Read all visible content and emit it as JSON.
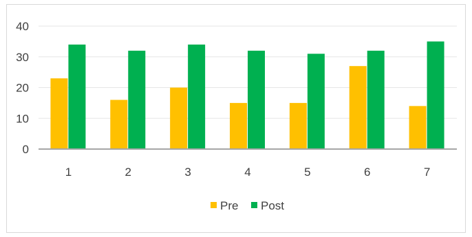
{
  "chart_data": {
    "type": "bar",
    "categories": [
      "1",
      "2",
      "3",
      "4",
      "5",
      "6",
      "7"
    ],
    "series": [
      {
        "name": "Pre",
        "values": [
          23,
          16,
          20,
          15,
          15,
          27,
          14
        ],
        "color": "#ffc000"
      },
      {
        "name": "Post",
        "values": [
          34,
          32,
          34,
          32,
          31,
          32,
          35
        ],
        "color": "#00b050"
      }
    ],
    "ylim": [
      0,
      40
    ],
    "yticks": [
      0,
      10,
      20,
      30,
      40
    ],
    "grid": true,
    "legend_position": "bottom",
    "colors": {
      "gridline": "#e6e6e6",
      "axis": "#a6a6a6",
      "text": "#404040"
    }
  }
}
